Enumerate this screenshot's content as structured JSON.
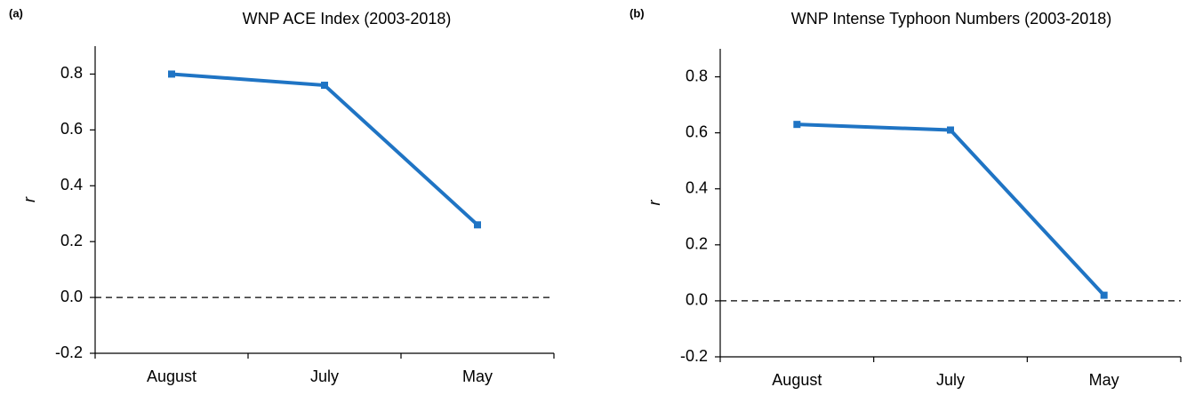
{
  "chart_data": [
    {
      "type": "line",
      "panel_label": "(a)",
      "title": "WNP ACE Index (2003-2018)",
      "y_label": "r",
      "categories": [
        "August",
        "July",
        "May"
      ],
      "values": [
        0.8,
        0.76,
        0.26
      ],
      "color": "#1f74c4",
      "ylim": [
        -0.2,
        0.9
      ],
      "yticks": [
        -0.2,
        {
          "value": 0,
          "label": "0.0"
        },
        0.2,
        0.4,
        0.6,
        0.8
      ],
      "reference_line": 0
    },
    {
      "type": "line",
      "panel_label": "(b)",
      "title": "WNP Intense Typhoon Numbers (2003-2018)",
      "y_label": "r",
      "categories": [
        "August",
        "July",
        "May"
      ],
      "values": [
        0.63,
        0.61,
        0.02
      ],
      "color": "#1f74c4",
      "ylim": [
        -0.2,
        0.9
      ],
      "yticks": [
        -0.2,
        {
          "value": 0,
          "label": "0.0"
        },
        0.2,
        0.4,
        0.6,
        0.8
      ],
      "reference_line": 0
    }
  ]
}
